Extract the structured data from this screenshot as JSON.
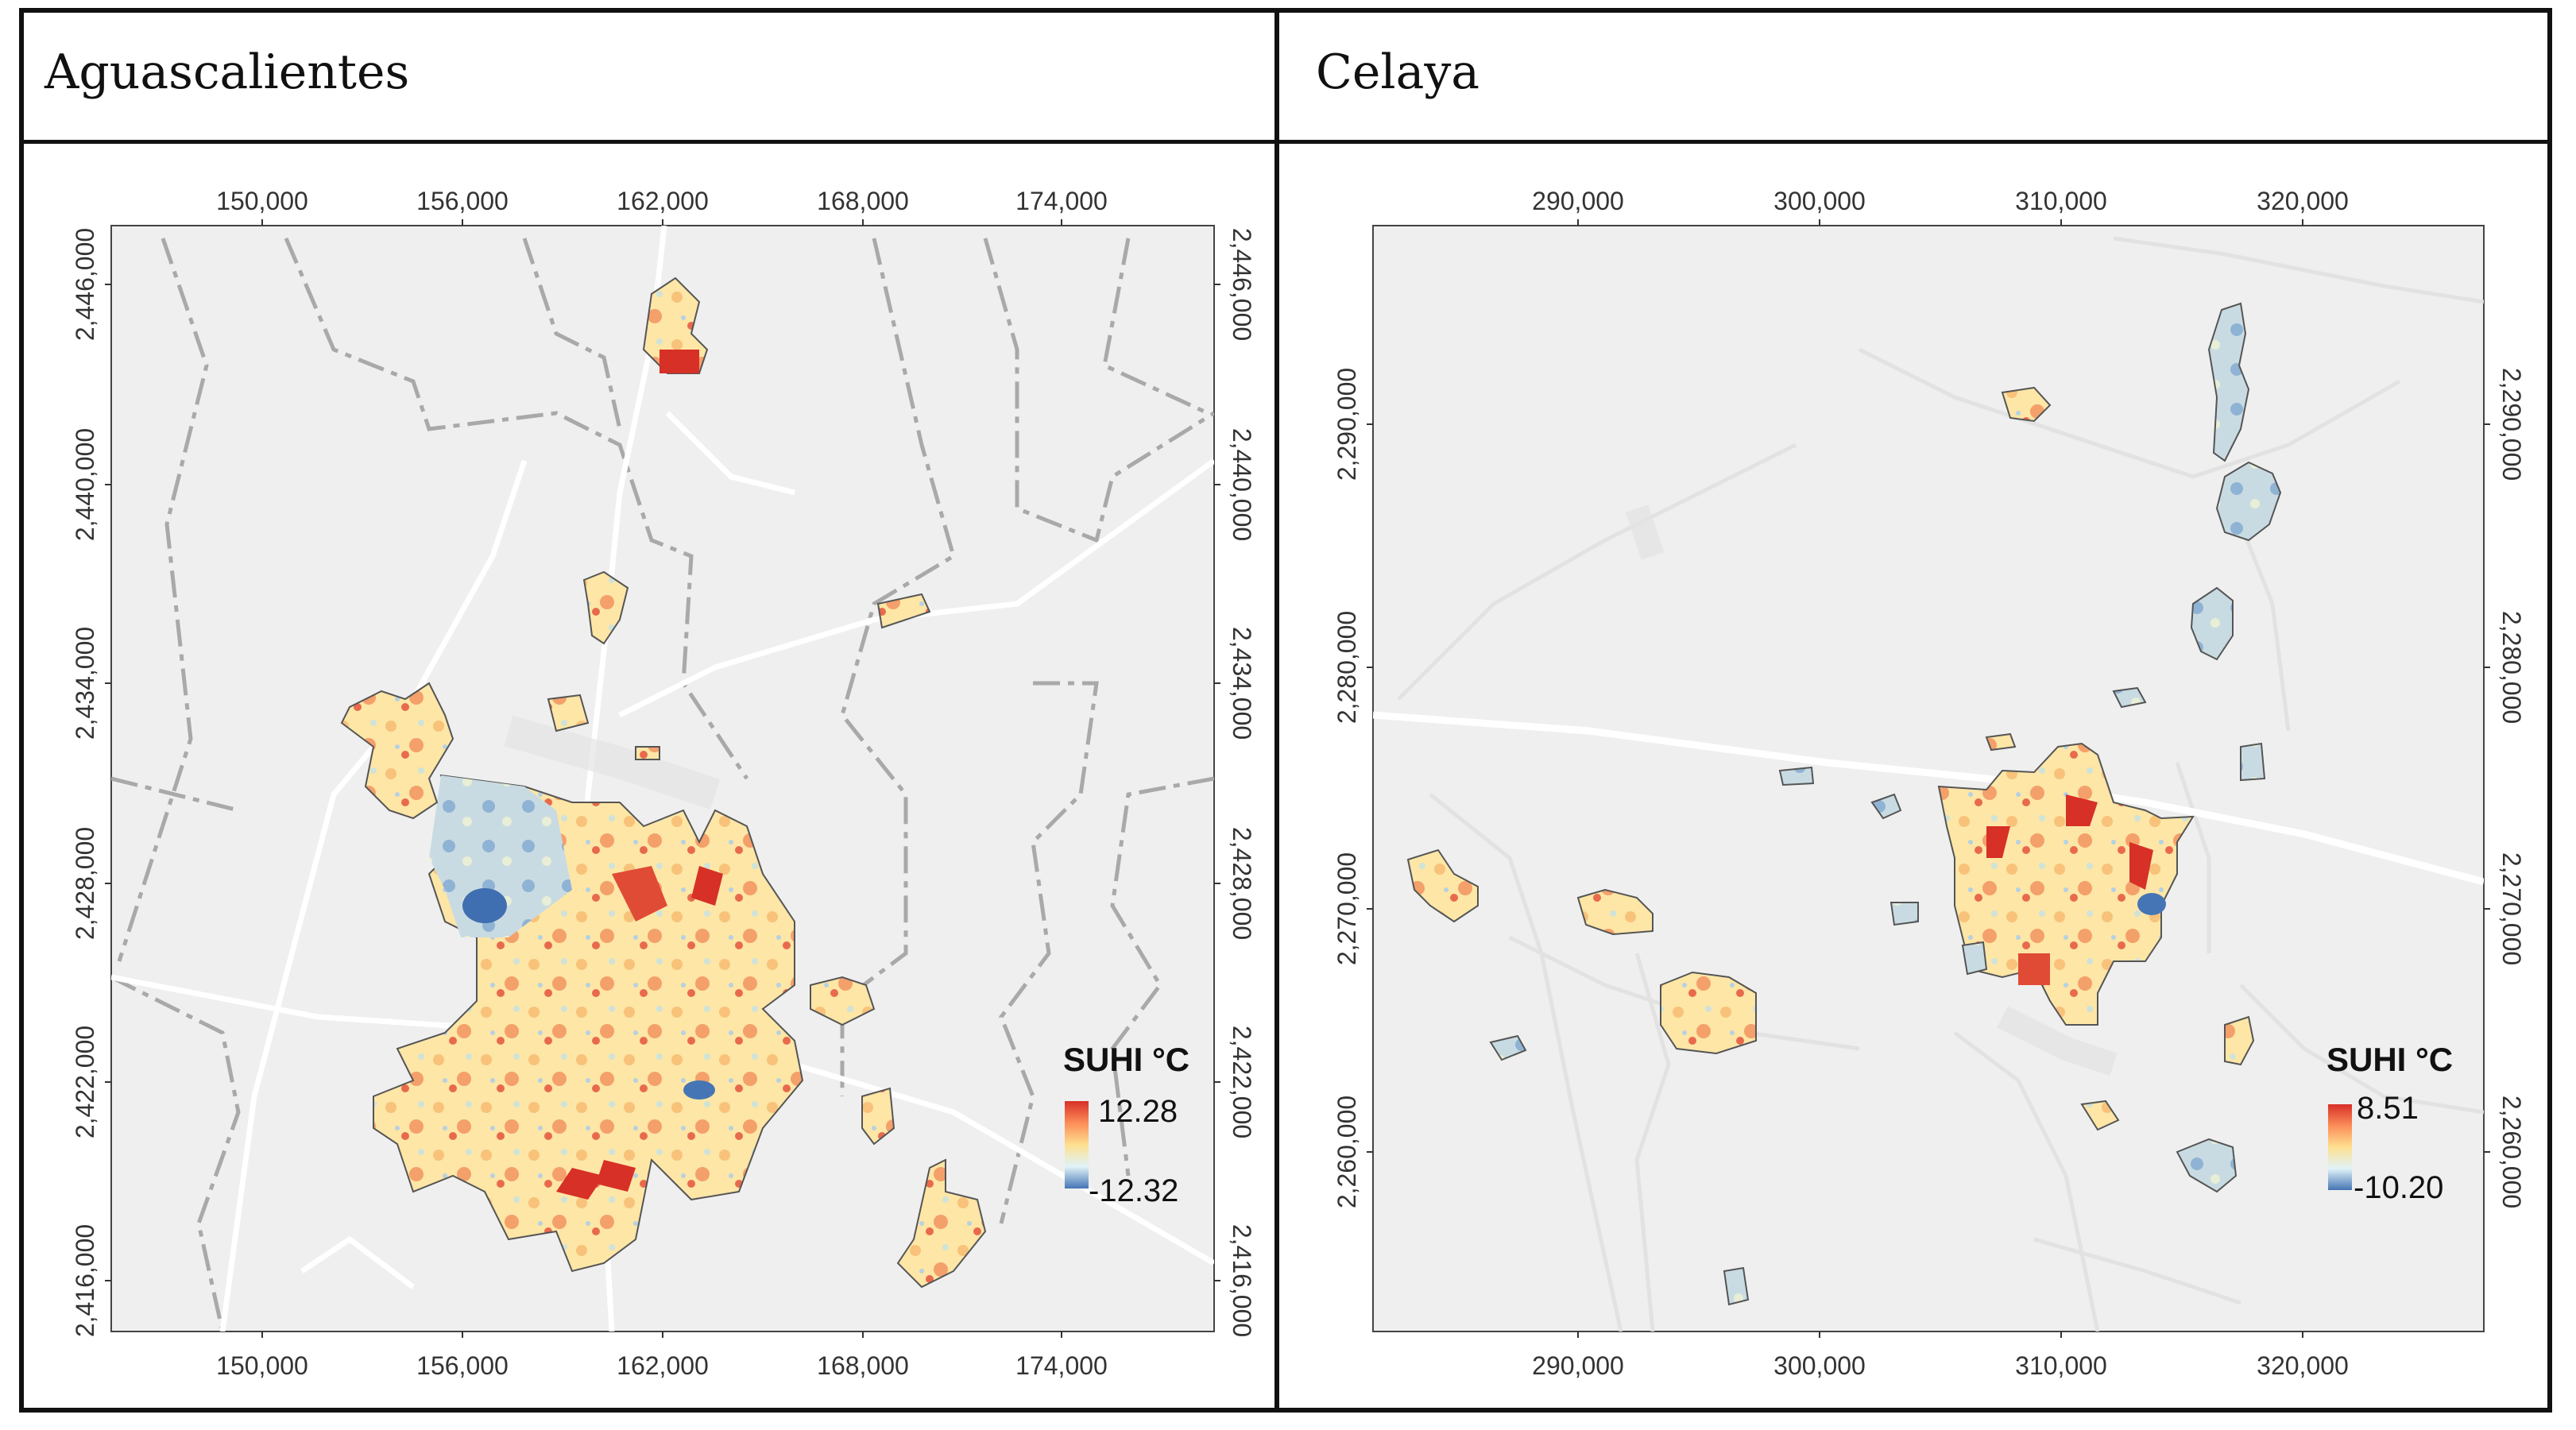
{
  "panels": [
    {
      "title": "Aguascalientes",
      "x_ticks": [
        "150,000",
        "156,000",
        "162,000",
        "168,000",
        "174,000"
      ],
      "y_ticks": [
        "2,446,000",
        "2,440,000",
        "2,434,000",
        "2,428,000",
        "2,422,000",
        "2,416,000"
      ],
      "legend": {
        "title": "SUHI °C",
        "max": "12.28",
        "min": "-12.32"
      }
    },
    {
      "title": "Celaya",
      "x_ticks": [
        "290,000",
        "300,000",
        "310,000",
        "320,000"
      ],
      "y_ticks": [
        "2,290,000",
        "2,280,000",
        "2,270,000",
        "2,260,000"
      ],
      "legend": {
        "title": "SUHI °C",
        "max": "8.51",
        "min": "-10.20"
      }
    }
  ],
  "colors": {
    "map_background": "#efefef",
    "road": "#ffffff",
    "boundary": "#a9a9a9",
    "suhi_high": "#d73027",
    "suhi_mid": "#fee090",
    "suhi_low": "#4575b4"
  }
}
